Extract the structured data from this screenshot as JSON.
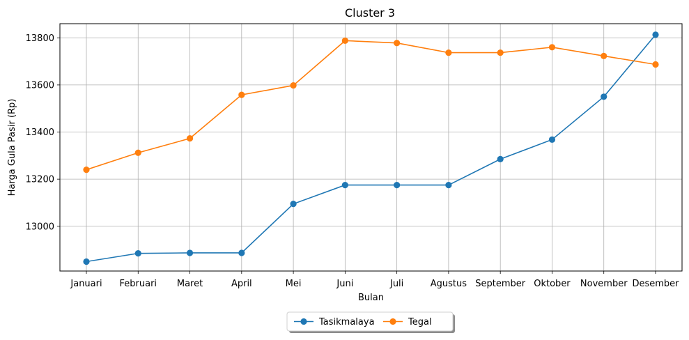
{
  "chart_data": {
    "type": "line",
    "title": "Cluster 3",
    "xlabel": "Bulan",
    "ylabel": "Harga Gula Pasir (Rp)",
    "categories": [
      "Januari",
      "Februari",
      "Maret",
      "April",
      "Mei",
      "Juni",
      "Juli",
      "Agustus",
      "September",
      "Oktober",
      "November",
      "Desember"
    ],
    "ylim": [
      12810,
      13860
    ],
    "yticks": [
      13000,
      13200,
      13400,
      13600,
      13800
    ],
    "grid": true,
    "legend_position": "bottom-center",
    "series": [
      {
        "name": "Tasikmalaya",
        "color": "#1f77b4",
        "marker": "circle",
        "values": [
          12850,
          12885,
          12887,
          12887,
          13095,
          13175,
          13175,
          13175,
          13285,
          13368,
          13550,
          13813
        ]
      },
      {
        "name": "Tegal",
        "color": "#ff7f0e",
        "marker": "circle",
        "values": [
          13240,
          13312,
          13373,
          13558,
          13598,
          13788,
          13778,
          13737,
          13737,
          13760,
          13723,
          13687
        ]
      }
    ]
  }
}
